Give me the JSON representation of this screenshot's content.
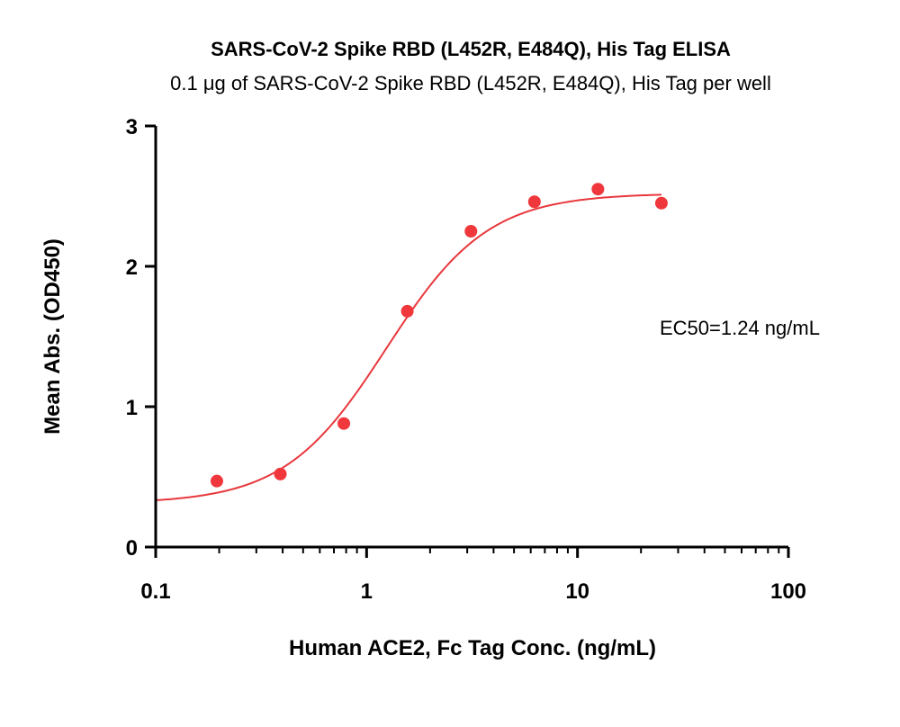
{
  "chart_data": {
    "type": "scatter",
    "title": "SARS-CoV-2 Spike RBD (L452R, E484Q), His Tag ELISA",
    "subtitle": "0.1 μg of SARS-CoV-2 Spike RBD (L452R, E484Q), His Tag per well",
    "xlabel": "Human ACE2, Fc Tag Conc. (ng/mL)",
    "ylabel": "Mean Abs. (OD450)",
    "x_scale": "log",
    "xlim": [
      0.1,
      100
    ],
    "ylim": [
      0,
      3
    ],
    "x_ticks": [
      0.1,
      1,
      10,
      100
    ],
    "x_tick_labels": [
      "0.1",
      "1",
      "10",
      "100"
    ],
    "y_ticks": [
      0,
      1,
      2,
      3
    ],
    "y_tick_labels": [
      "0",
      "1",
      "2",
      "3"
    ],
    "grid": false,
    "colors": {
      "points": "#f0373c",
      "curve": "#e8383d",
      "axes": "#000000"
    },
    "series": [
      {
        "x": [
          0.195,
          0.39,
          0.78,
          1.56,
          3.125,
          6.25,
          12.5,
          25
        ],
        "y": [
          0.47,
          0.52,
          0.88,
          1.68,
          2.25,
          2.46,
          2.55,
          2.45
        ]
      }
    ],
    "fit_curve": {
      "model": "4PL",
      "bottom": 0.31,
      "top": 2.52,
      "ec50": 1.24,
      "hill": 1.8,
      "x_range": [
        0.1,
        25
      ]
    },
    "annotations": [
      {
        "text": "EC50=1.24 ng/mL"
      }
    ]
  }
}
